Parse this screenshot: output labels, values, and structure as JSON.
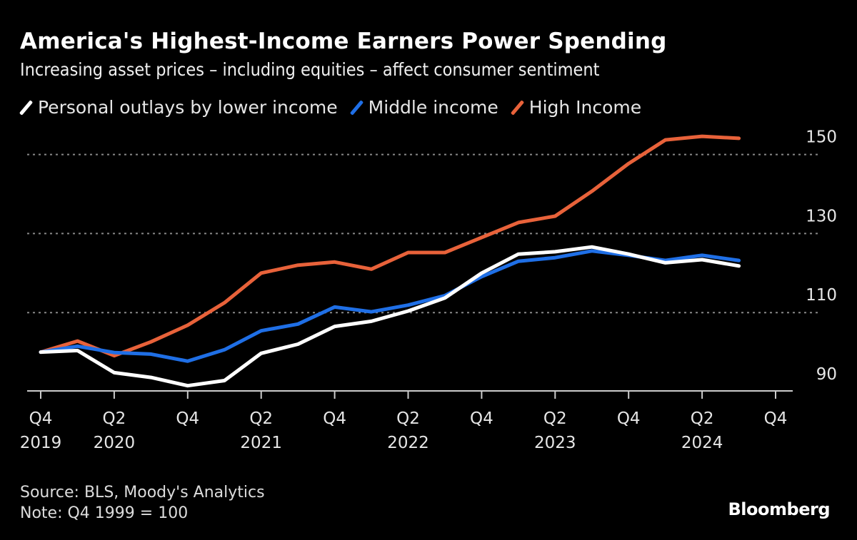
{
  "title": "America's Highest-Income Earners Power Spending",
  "subtitle": "Increasing asset prices – including equities – affect consumer sentiment",
  "footer": {
    "source": "Source: BLS, Moody's Analytics",
    "note": "Note: Q4 1999 = 100"
  },
  "logo": "Bloomberg",
  "chart_data": {
    "type": "line",
    "title": "America's Highest-Income Earners Power Spending",
    "subtitle": "Increasing asset prices – including equities – affect consumer sentiment",
    "x": [
      "Q4 2019",
      "Q1 2020",
      "Q2 2020",
      "Q3 2020",
      "Q4 2020",
      "Q1 2021",
      "Q2 2021",
      "Q3 2021",
      "Q4 2021",
      "Q1 2022",
      "Q2 2022",
      "Q3 2022",
      "Q4 2022",
      "Q1 2023",
      "Q2 2023",
      "Q3 2023",
      "Q4 2023",
      "Q1 2024",
      "Q2 2024",
      "Q3 2024"
    ],
    "x_ticks": [
      {
        "q": "Q4",
        "year": "2019"
      },
      {
        "q": "Q2",
        "year": "2020"
      },
      {
        "q": "Q4",
        "year": ""
      },
      {
        "q": "Q2",
        "year": "2021"
      },
      {
        "q": "Q4",
        "year": ""
      },
      {
        "q": "Q2",
        "year": "2022"
      },
      {
        "q": "Q4",
        "year": ""
      },
      {
        "q": "Q2",
        "year": "2023"
      },
      {
        "q": "Q4",
        "year": ""
      },
      {
        "q": "Q2",
        "year": "2024"
      },
      {
        "q": "Q4",
        "year": ""
      }
    ],
    "y_ticks": [
      90,
      110,
      130,
      150
    ],
    "ylim": [
      90,
      157
    ],
    "grid": "horizontal dotted",
    "y_axis_side": "right",
    "legend_placement": "top-left",
    "series": [
      {
        "name": "Personal outlays by lower income",
        "color": "#ffffff",
        "values": [
          100,
          100.4,
          94.8,
          93.6,
          91.5,
          92.8,
          99.7,
          102,
          106.5,
          107.8,
          110.4,
          113.7,
          120,
          124.8,
          125.4,
          126.6,
          124.8,
          122.6,
          123.4,
          121.8
        ]
      },
      {
        "name": "Middle income",
        "color": "#1f6fe6",
        "values": [
          100,
          101.5,
          99.9,
          99.5,
          97.7,
          100.6,
          105.4,
          107.1,
          111.4,
          110.2,
          111.9,
          114.3,
          119.1,
          123,
          123.9,
          125.6,
          124.5,
          123.2,
          124.5,
          123.2
        ]
      },
      {
        "name": "High Income",
        "color": "#e8623a",
        "values": [
          100,
          102.8,
          99.1,
          102.6,
          106.8,
          112.5,
          120,
          122,
          122.8,
          121,
          125.2,
          125.2,
          129,
          132.8,
          134.4,
          140.7,
          147.7,
          153.7,
          154.6,
          154.1
        ]
      }
    ]
  }
}
